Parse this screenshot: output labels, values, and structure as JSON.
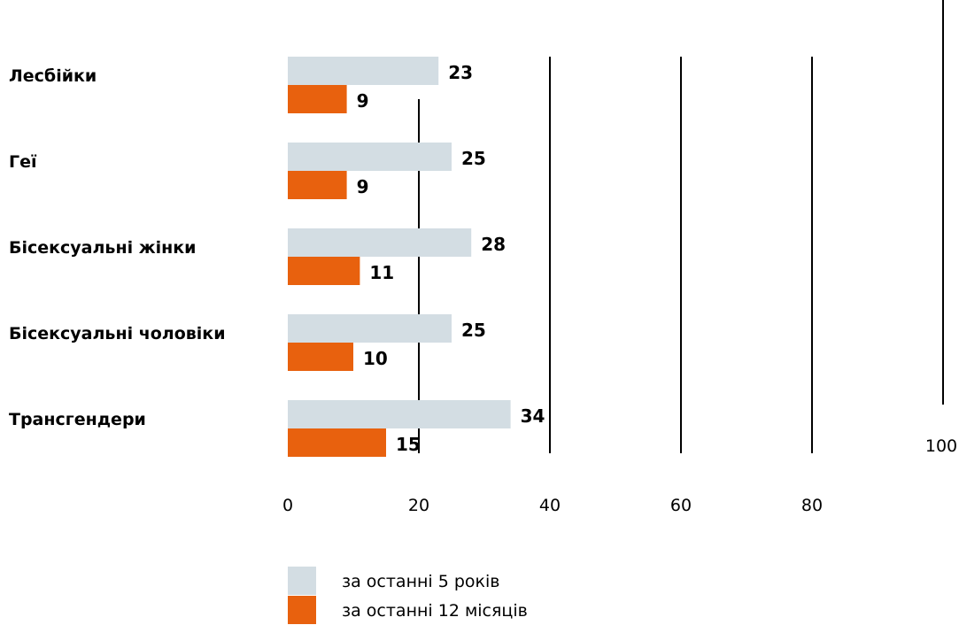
{
  "chart_data": {
    "type": "bar",
    "orientation": "horizontal",
    "title": "",
    "categories": [
      "Лесбійки",
      "Геї",
      "Бісексуальні жінки",
      "Бісексуальні чоловіки",
      "Трансгендери"
    ],
    "series": [
      {
        "name": "за останні 5 років",
        "values": [
          23,
          25,
          28,
          25,
          34
        ],
        "color": "#d3dde3"
      },
      {
        "name": "за останні 12 місяців",
        "values": [
          9,
          9,
          11,
          10,
          15
        ],
        "color": "#e8610e"
      }
    ],
    "xlim": [
      0,
      100
    ],
    "x_ticks": [
      "0",
      "20",
      "40",
      "60",
      "80",
      "100"
    ],
    "grid": true,
    "legend": "bottom"
  }
}
